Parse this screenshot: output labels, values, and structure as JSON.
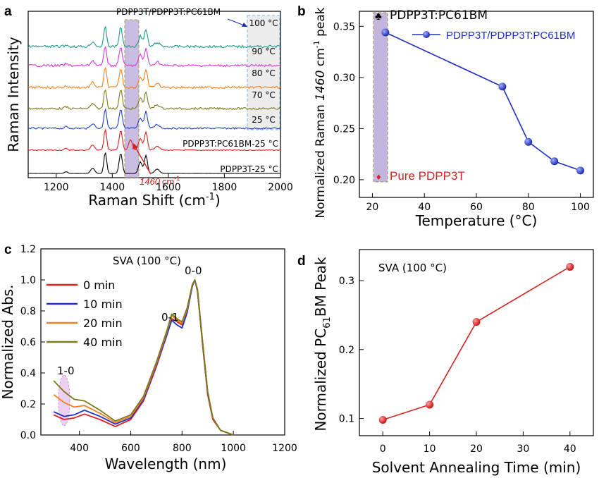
{
  "chart_data": [
    {
      "panel": "a",
      "type": "line",
      "xlabel": "Raman Shift (cm⁻¹)",
      "ylabel": "Raman Intensity",
      "xlim": [
        1100,
        2000
      ],
      "x_ticks": [
        "1200",
        "1400",
        "1600",
        "1800",
        "2000"
      ],
      "series": [
        {
          "name": "PDPP3T-25 °C",
          "color": "#000000"
        },
        {
          "name": "PDPP3T:PC61BM-25 °C",
          "color": "#d62020"
        },
        {
          "name": "25 °C",
          "color": "#1f3fbf"
        },
        {
          "name": "70 °C",
          "color": "#7a7a1a"
        },
        {
          "name": "80 °C",
          "color": "#f08020"
        },
        {
          "name": "90 °C",
          "color": "#d438d4"
        },
        {
          "name": "100 °C",
          "color": "#1f9a8a"
        }
      ],
      "group_label": "PDPP3T/PDPP3T:PC61BM",
      "box_labels": [
        "100 °C",
        "90 °C",
        "80 °C",
        "70 °C",
        "25 °C"
      ],
      "label_black": "PDPP3T-25 °C",
      "label_red": "PDPP3T:PC61BM-25 °C",
      "marker_value": "1460",
      "marker_unit": "cm",
      "marker_sup": "-1"
    },
    {
      "panel": "b",
      "type": "line",
      "xlabel": "Temperature (°C)",
      "ylabel": "Normalized Raman 1460 cm⁻¹ peak",
      "xlim": [
        15,
        105
      ],
      "ylim": [
        0.2,
        0.35
      ],
      "x_ticks": [
        "20",
        "40",
        "60",
        "80",
        "100"
      ],
      "y_ticks": [
        "0.20",
        "0.25",
        "0.30",
        "0.35"
      ],
      "series": [
        {
          "name": "PDPP3T/PDPP3T:PC61BM",
          "x": [
            25,
            70,
            80,
            90,
            100
          ],
          "y": [
            0.344,
            0.291,
            0.237,
            0.218,
            0.209
          ],
          "color": "#1f2fbf"
        }
      ],
      "annotations": [
        {
          "text": "PDPP3T:PC61BM",
          "x": 25,
          "y": 0.354
        },
        {
          "text": "Pure PDPP3T",
          "x": 25,
          "y": 0.204,
          "color": "#d62020"
        }
      ]
    },
    {
      "panel": "c",
      "type": "line",
      "xlabel": "Wavelength (nm)",
      "ylabel": "Normalized Abs.",
      "xlim": [
        250,
        1200
      ],
      "ylim": [
        0,
        1.2
      ],
      "x_ticks": [
        "400",
        "600",
        "800",
        "1000",
        "1200"
      ],
      "y_ticks": [
        "0.0",
        "0.2",
        "0.4",
        "0.6",
        "0.8",
        "1.0",
        "1.2"
      ],
      "condition": "SVA (100 °C)",
      "peak_labels": [
        "1-0",
        "0-1",
        "0-0"
      ],
      "series": [
        {
          "name": "0 min",
          "color": "#e02020",
          "x": [
            300,
            340,
            380,
            420,
            480,
            540,
            600,
            650,
            700,
            740,
            760,
            780,
            800,
            820,
            840,
            850,
            860,
            880,
            900,
            920,
            950,
            1000
          ],
          "y": [
            0.13,
            0.1,
            0.11,
            0.135,
            0.1,
            0.055,
            0.1,
            0.22,
            0.44,
            0.64,
            0.75,
            0.73,
            0.71,
            0.8,
            0.96,
            1.0,
            0.93,
            0.58,
            0.26,
            0.1,
            0.03,
            0.0
          ]
        },
        {
          "name": "10 min",
          "color": "#1f2fcf",
          "x": [
            300,
            340,
            380,
            420,
            480,
            540,
            600,
            650,
            700,
            740,
            760,
            780,
            800,
            820,
            840,
            850,
            860,
            880,
            900,
            920,
            950,
            1000
          ],
          "y": [
            0.15,
            0.12,
            0.13,
            0.16,
            0.12,
            0.07,
            0.11,
            0.23,
            0.45,
            0.64,
            0.74,
            0.71,
            0.69,
            0.79,
            0.96,
            1.0,
            0.93,
            0.59,
            0.27,
            0.11,
            0.03,
            0.0
          ]
        },
        {
          "name": "20 min",
          "color": "#f08020",
          "x": [
            300,
            340,
            380,
            420,
            480,
            540,
            600,
            650,
            700,
            740,
            760,
            780,
            800,
            820,
            840,
            850,
            860,
            880,
            900,
            920,
            950,
            1000
          ],
          "y": [
            0.26,
            0.21,
            0.18,
            0.19,
            0.14,
            0.08,
            0.12,
            0.24,
            0.46,
            0.66,
            0.77,
            0.74,
            0.72,
            0.81,
            0.97,
            1.0,
            0.94,
            0.6,
            0.28,
            0.11,
            0.03,
            0.0
          ]
        },
        {
          "name": "40 min",
          "color": "#7a7a1a",
          "x": [
            300,
            340,
            380,
            420,
            480,
            540,
            600,
            650,
            700,
            740,
            760,
            780,
            800,
            820,
            840,
            850,
            860,
            880,
            900,
            920,
            950,
            1000
          ],
          "y": [
            0.35,
            0.28,
            0.23,
            0.22,
            0.16,
            0.09,
            0.13,
            0.25,
            0.47,
            0.67,
            0.78,
            0.75,
            0.73,
            0.82,
            0.97,
            1.0,
            0.94,
            0.6,
            0.28,
            0.11,
            0.03,
            0.0
          ]
        }
      ]
    },
    {
      "panel": "d",
      "type": "line",
      "xlabel": "Solvent Annealing Time (min)",
      "ylabel": "Normalized PC61BM Peak",
      "xlim": [
        -5,
        45
      ],
      "ylim": [
        0.075,
        0.345
      ],
      "x_ticks": [
        "0",
        "10",
        "20",
        "30",
        "40"
      ],
      "y_ticks": [
        "0.1",
        "0.2",
        "0.3"
      ],
      "condition": "SVA (100 °C)",
      "series": [
        {
          "name": "",
          "x": [
            0,
            10,
            20,
            40
          ],
          "y": [
            0.098,
            0.12,
            0.24,
            0.32
          ],
          "color": "#d42020"
        }
      ]
    }
  ]
}
